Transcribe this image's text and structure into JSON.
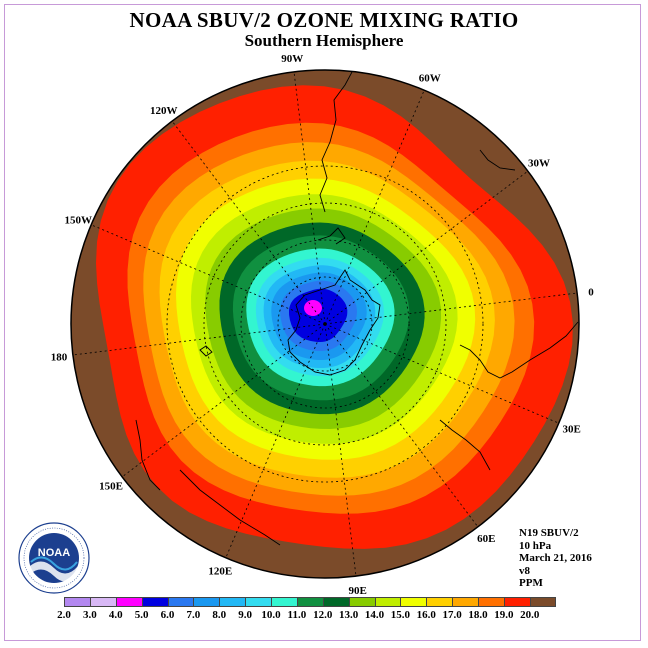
{
  "title": "NOAA SBUV/2 OZONE MIXING RATIO",
  "subtitle": "Southern Hemisphere",
  "longitude_labels": [
    "90W",
    "60W",
    "30W",
    "0",
    "30E",
    "60E",
    "90E",
    "120E",
    "150E",
    "180",
    "150W",
    "120W"
  ],
  "info": {
    "instrument": "N19 SBUV/2",
    "pressure": "10 hPa",
    "date": "March 21, 2016",
    "version": "v8",
    "units": "PPM"
  },
  "colorbar": {
    "ticks": [
      "2.0",
      "3.0",
      "4.0",
      "5.0",
      "6.0",
      "7.0",
      "8.0",
      "9.0",
      "10.0",
      "11.0",
      "12.0",
      "13.0",
      "14.0",
      "15.0",
      "16.0",
      "17.0",
      "18.0",
      "19.0",
      "20.0"
    ],
    "colors": [
      "#b388f0",
      "#d8b8f5",
      "#ff00ff",
      "#0000e0",
      "#2a78f0",
      "#1a98f0",
      "#22b8f5",
      "#33dcf0",
      "#33f5d0",
      "#109040",
      "#006828",
      "#88cc00",
      "#c0ee00",
      "#f0ff00",
      "#ffd000",
      "#ffa800",
      "#ff7000",
      "#ff2000",
      "#7b4b2a"
    ]
  },
  "logo": {
    "text": "NOAA",
    "ring_text": "NATIONAL OCEANIC AND ATMOSPHERIC ADMINISTRATION · U.S. DEPARTMENT OF COMMERCE"
  },
  "map": {
    "projection": "polar-stereographic",
    "hemisphere": "south",
    "field": "ozone mixing ratio",
    "data_shown_by": "filled contour bands"
  }
}
